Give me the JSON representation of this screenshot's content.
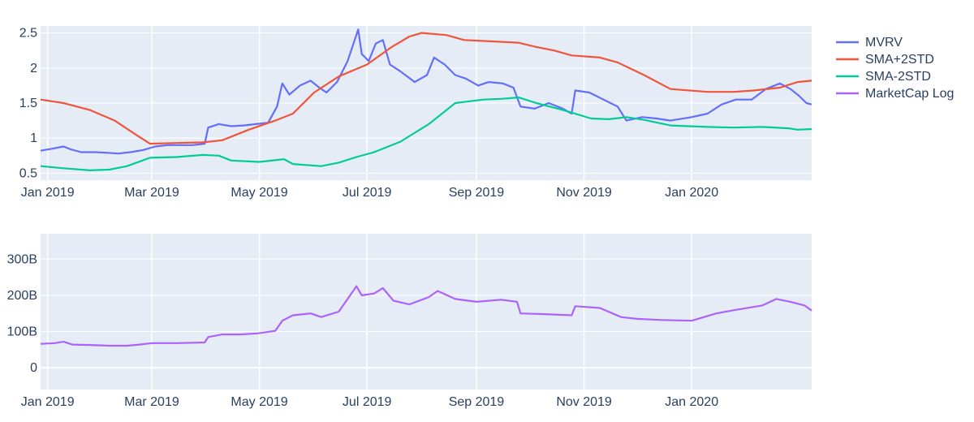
{
  "chart_data": [
    {
      "type": "line",
      "x_ticks": [
        "Jan 2019",
        "Mar 2019",
        "May 2019",
        "Jul 2019",
        "Sep 2019",
        "Nov 2019",
        "Jan 2020"
      ],
      "y_ticks": [
        "0.5",
        "1",
        "1.5",
        "2",
        "2.5"
      ],
      "ylim": [
        0.4,
        2.6
      ],
      "xlim": [
        "2018-12-28",
        "2020-03-09"
      ],
      "grid": true,
      "legend_placement": "right",
      "series": [
        {
          "name": "MVRV",
          "color": "#636efa",
          "points": [
            [
              "2018-12-28",
              0.82
            ],
            [
              "2019-01-04",
              0.85
            ],
            [
              "2019-01-10",
              0.88
            ],
            [
              "2019-01-14",
              0.84
            ],
            [
              "2019-01-20",
              0.8
            ],
            [
              "2019-01-28",
              0.8
            ],
            [
              "2019-02-04",
              0.79
            ],
            [
              "2019-02-10",
              0.78
            ],
            [
              "2019-02-17",
              0.8
            ],
            [
              "2019-02-24",
              0.83
            ],
            [
              "2019-03-03",
              0.88
            ],
            [
              "2019-03-10",
              0.9
            ],
            [
              "2019-03-17",
              0.9
            ],
            [
              "2019-03-24",
              0.9
            ],
            [
              "2019-03-31",
              0.92
            ],
            [
              "2019-04-02",
              1.15
            ],
            [
              "2019-04-08",
              1.2
            ],
            [
              "2019-04-15",
              1.17
            ],
            [
              "2019-04-22",
              1.18
            ],
            [
              "2019-04-29",
              1.2
            ],
            [
              "2019-05-06",
              1.22
            ],
            [
              "2019-05-11",
              1.45
            ],
            [
              "2019-05-14",
              1.78
            ],
            [
              "2019-05-18",
              1.62
            ],
            [
              "2019-05-24",
              1.75
            ],
            [
              "2019-05-30",
              1.82
            ],
            [
              "2019-06-04",
              1.72
            ],
            [
              "2019-06-08",
              1.65
            ],
            [
              "2019-06-14",
              1.8
            ],
            [
              "2019-06-20",
              2.1
            ],
            [
              "2019-06-26",
              2.55
            ],
            [
              "2019-06-28",
              2.2
            ],
            [
              "2019-07-02",
              2.1
            ],
            [
              "2019-07-06",
              2.35
            ],
            [
              "2019-07-10",
              2.4
            ],
            [
              "2019-07-14",
              2.05
            ],
            [
              "2019-07-20",
              1.95
            ],
            [
              "2019-07-28",
              1.8
            ],
            [
              "2019-08-04",
              1.9
            ],
            [
              "2019-08-08",
              2.15
            ],
            [
              "2019-08-14",
              2.05
            ],
            [
              "2019-08-20",
              1.9
            ],
            [
              "2019-08-26",
              1.85
            ],
            [
              "2019-09-02",
              1.75
            ],
            [
              "2019-09-08",
              1.8
            ],
            [
              "2019-09-16",
              1.78
            ],
            [
              "2019-09-22",
              1.72
            ],
            [
              "2019-09-26",
              1.45
            ],
            [
              "2019-10-04",
              1.42
            ],
            [
              "2019-10-12",
              1.5
            ],
            [
              "2019-10-20",
              1.42
            ],
            [
              "2019-10-25",
              1.35
            ],
            [
              "2019-10-27",
              1.68
            ],
            [
              "2019-11-04",
              1.65
            ],
            [
              "2019-11-12",
              1.55
            ],
            [
              "2019-11-20",
              1.45
            ],
            [
              "2019-11-25",
              1.25
            ],
            [
              "2019-12-04",
              1.3
            ],
            [
              "2019-12-12",
              1.28
            ],
            [
              "2019-12-20",
              1.25
            ],
            [
              "2020-01-01",
              1.3
            ],
            [
              "2020-01-10",
              1.35
            ],
            [
              "2020-01-18",
              1.48
            ],
            [
              "2020-01-26",
              1.55
            ],
            [
              "2020-02-04",
              1.55
            ],
            [
              "2020-02-12",
              1.7
            ],
            [
              "2020-02-20",
              1.78
            ],
            [
              "2020-02-26",
              1.7
            ],
            [
              "2020-03-02",
              1.6
            ],
            [
              "2020-03-06",
              1.5
            ],
            [
              "2020-03-09",
              1.48
            ]
          ]
        },
        {
          "name": "SMA+2STD",
          "color": "#ef553b",
          "points": [
            [
              "2018-12-28",
              1.55
            ],
            [
              "2019-01-10",
              1.5
            ],
            [
              "2019-01-25",
              1.4
            ],
            [
              "2019-02-08",
              1.25
            ],
            [
              "2019-02-20",
              1.05
            ],
            [
              "2019-02-28",
              0.92
            ],
            [
              "2019-03-15",
              0.93
            ],
            [
              "2019-03-30",
              0.94
            ],
            [
              "2019-04-10",
              0.97
            ],
            [
              "2019-04-25",
              1.12
            ],
            [
              "2019-05-10",
              1.25
            ],
            [
              "2019-05-20",
              1.35
            ],
            [
              "2019-06-01",
              1.65
            ],
            [
              "2019-06-15",
              1.88
            ],
            [
              "2019-07-01",
              2.05
            ],
            [
              "2019-07-15",
              2.3
            ],
            [
              "2019-07-25",
              2.45
            ],
            [
              "2019-08-01",
              2.5
            ],
            [
              "2019-08-15",
              2.47
            ],
            [
              "2019-08-25",
              2.4
            ],
            [
              "2019-09-10",
              2.38
            ],
            [
              "2019-09-25",
              2.36
            ],
            [
              "2019-10-05",
              2.3
            ],
            [
              "2019-10-15",
              2.25
            ],
            [
              "2019-10-25",
              2.18
            ],
            [
              "2019-11-10",
              2.15
            ],
            [
              "2019-11-20",
              2.08
            ],
            [
              "2019-12-05",
              1.9
            ],
            [
              "2019-12-20",
              1.7
            ],
            [
              "2020-01-10",
              1.66
            ],
            [
              "2020-01-25",
              1.66
            ],
            [
              "2020-02-05",
              1.68
            ],
            [
              "2020-02-20",
              1.72
            ],
            [
              "2020-03-01",
              1.8
            ],
            [
              "2020-03-09",
              1.82
            ]
          ]
        },
        {
          "name": "SMA-2STD",
          "color": "#00cc96",
          "points": [
            [
              "2018-12-28",
              0.6
            ],
            [
              "2019-01-10",
              0.57
            ],
            [
              "2019-01-25",
              0.54
            ],
            [
              "2019-02-05",
              0.55
            ],
            [
              "2019-02-15",
              0.6
            ],
            [
              "2019-02-28",
              0.72
            ],
            [
              "2019-03-15",
              0.73
            ],
            [
              "2019-03-30",
              0.76
            ],
            [
              "2019-04-08",
              0.75
            ],
            [
              "2019-04-15",
              0.68
            ],
            [
              "2019-05-01",
              0.66
            ],
            [
              "2019-05-15",
              0.7
            ],
            [
              "2019-05-20",
              0.63
            ],
            [
              "2019-06-05",
              0.6
            ],
            [
              "2019-06-15",
              0.65
            ],
            [
              "2019-06-25",
              0.73
            ],
            [
              "2019-07-05",
              0.8
            ],
            [
              "2019-07-20",
              0.95
            ],
            [
              "2019-08-05",
              1.2
            ],
            [
              "2019-08-20",
              1.5
            ],
            [
              "2019-09-05",
              1.55
            ],
            [
              "2019-09-15",
              1.56
            ],
            [
              "2019-09-25",
              1.58
            ],
            [
              "2019-10-05",
              1.5
            ],
            [
              "2019-10-20",
              1.4
            ],
            [
              "2019-11-05",
              1.28
            ],
            [
              "2019-11-15",
              1.27
            ],
            [
              "2019-11-25",
              1.3
            ],
            [
              "2019-12-05",
              1.26
            ],
            [
              "2019-12-20",
              1.18
            ],
            [
              "2020-01-10",
              1.16
            ],
            [
              "2020-01-25",
              1.15
            ],
            [
              "2020-02-10",
              1.16
            ],
            [
              "2020-02-25",
              1.14
            ],
            [
              "2020-03-01",
              1.12
            ],
            [
              "2020-03-09",
              1.13
            ]
          ]
        }
      ]
    },
    {
      "type": "line",
      "x_ticks": [
        "Jan 2019",
        "Mar 2019",
        "May 2019",
        "Jul 2019",
        "Sep 2019",
        "Nov 2019",
        "Jan 2020"
      ],
      "y_ticks": [
        "0",
        "100B",
        "200B",
        "300B"
      ],
      "ylim": [
        -60,
        370
      ],
      "y_unit": "billions",
      "xlim": [
        "2018-12-28",
        "2020-03-09"
      ],
      "grid": true,
      "series": [
        {
          "name": "MarketCap Log",
          "color": "#ab63fa",
          "points": [
            [
              "2018-12-28",
              66
            ],
            [
              "2019-01-05",
              68
            ],
            [
              "2019-01-10",
              72
            ],
            [
              "2019-01-15",
              64
            ],
            [
              "2019-01-25",
              63
            ],
            [
              "2019-02-05",
              61
            ],
            [
              "2019-02-15",
              61
            ],
            [
              "2019-02-22",
              64
            ],
            [
              "2019-03-01",
              68
            ],
            [
              "2019-03-15",
              68
            ],
            [
              "2019-03-31",
              70
            ],
            [
              "2019-04-02",
              85
            ],
            [
              "2019-04-10",
              92
            ],
            [
              "2019-04-20",
              92
            ],
            [
              "2019-04-30",
              95
            ],
            [
              "2019-05-10",
              102
            ],
            [
              "2019-05-14",
              130
            ],
            [
              "2019-05-20",
              145
            ],
            [
              "2019-05-30",
              150
            ],
            [
              "2019-06-05",
              140
            ],
            [
              "2019-06-15",
              155
            ],
            [
              "2019-06-25",
              225
            ],
            [
              "2019-06-28",
              200
            ],
            [
              "2019-07-05",
              205
            ],
            [
              "2019-07-10",
              220
            ],
            [
              "2019-07-16",
              185
            ],
            [
              "2019-07-25",
              175
            ],
            [
              "2019-08-05",
              195
            ],
            [
              "2019-08-10",
              212
            ],
            [
              "2019-08-20",
              190
            ],
            [
              "2019-09-01",
              182
            ],
            [
              "2019-09-15",
              188
            ],
            [
              "2019-09-24",
              182
            ],
            [
              "2019-09-26",
              150
            ],
            [
              "2019-10-10",
              148
            ],
            [
              "2019-10-25",
              145
            ],
            [
              "2019-10-27",
              170
            ],
            [
              "2019-11-10",
              165
            ],
            [
              "2019-11-22",
              140
            ],
            [
              "2019-12-01",
              135
            ],
            [
              "2019-12-15",
              132
            ],
            [
              "2020-01-01",
              130
            ],
            [
              "2020-01-15",
              150
            ],
            [
              "2020-01-26",
              160
            ],
            [
              "2020-02-10",
              172
            ],
            [
              "2020-02-18",
              190
            ],
            [
              "2020-02-26",
              182
            ],
            [
              "2020-03-05",
              172
            ],
            [
              "2020-03-09",
              158
            ]
          ]
        }
      ]
    }
  ]
}
